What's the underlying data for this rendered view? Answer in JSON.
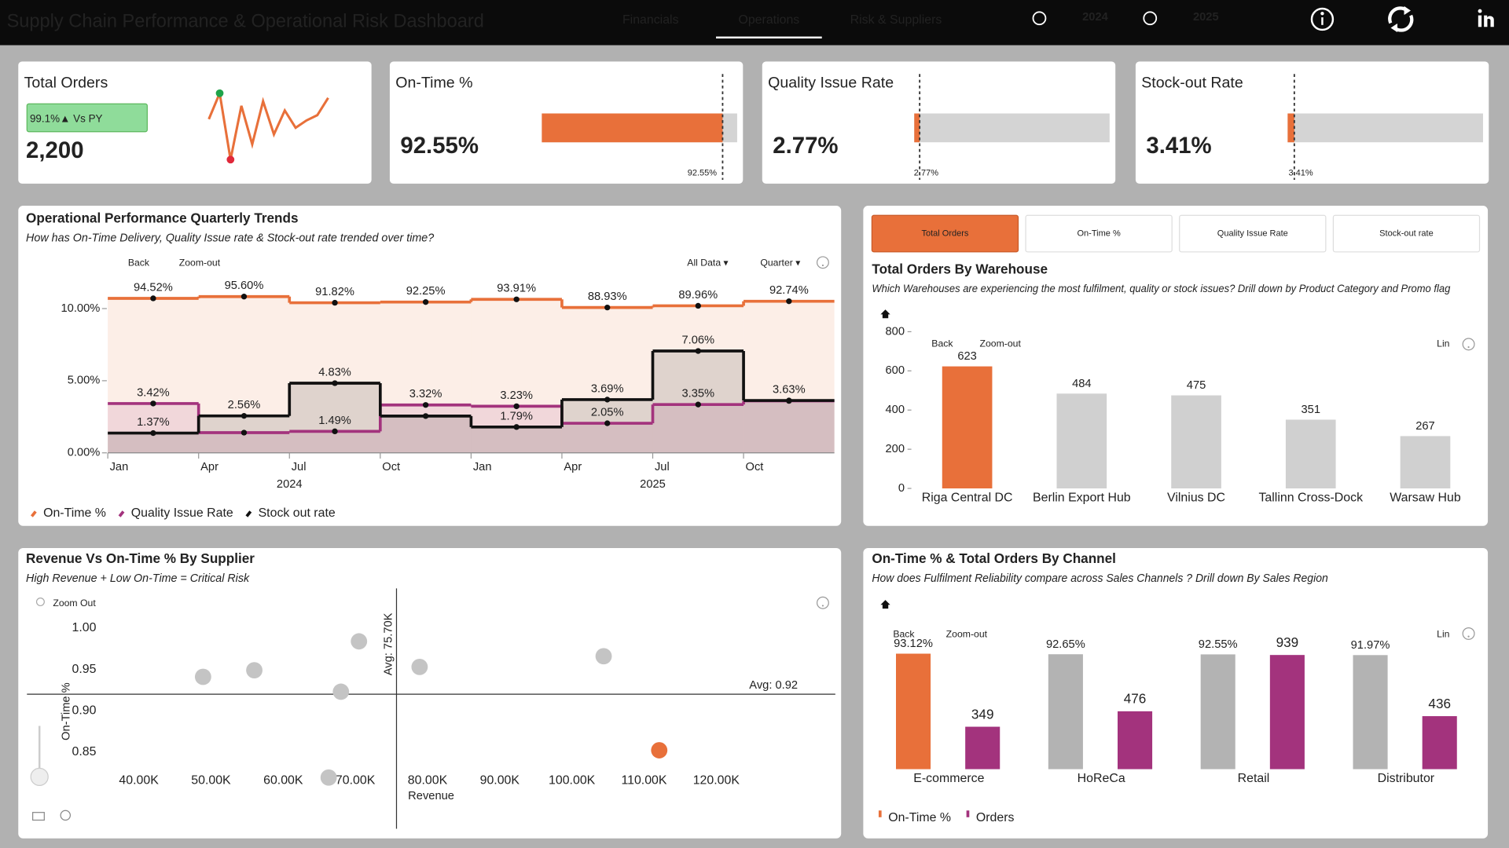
{
  "header": {
    "title": "Supply Chain Performance & Operational Risk Dashboard",
    "nav": [
      "Financials",
      "Operations",
      "Risk & Suppliers"
    ],
    "active_nav": 1,
    "years": [
      "2024",
      "2025"
    ]
  },
  "kpis": [
    {
      "title": "Total Orders",
      "value": "2,200",
      "badge": "99.1%▲ Vs PY",
      "sparkline": {
        "values": [
          61,
          100,
          0,
          81,
          23,
          88,
          38,
          74,
          48,
          59,
          67,
          93
        ],
        "ylim": [
          0,
          100
        ],
        "color": "#e8703a"
      }
    },
    {
      "title": "On-Time %",
      "value": 92.55,
      "value_label": "92.55%",
      "target": 92.55,
      "target_label": "92.55%",
      "xlim": [
        0,
        100
      ],
      "color": "#e8703a"
    },
    {
      "title": "Quality Issue Rate",
      "value": 2.77,
      "value_label": "2.77%",
      "target": 2.77,
      "target_label": "2.77%",
      "xlim": [
        0,
        100
      ],
      "color": "#e8703a"
    },
    {
      "title": "Stock-out Rate",
      "value": 3.41,
      "value_label": "3.41%",
      "target": 3.41,
      "target_label": "3.41%",
      "xlim": [
        0,
        100
      ],
      "color": "#e8703a"
    }
  ],
  "chart_data": [
    {
      "type": "line",
      "title": "Operational Performance Quarterly Trends",
      "subtitle": "How has On-Time Delivery, Quality Issue rate & Stock-out rate trended over time?",
      "toolbar": [
        "Back",
        "Zoom-out",
        "All Data ▾",
        "Quarter ▾"
      ],
      "x": [
        "2024-01",
        "2024-04",
        "2024-07",
        "2024-10",
        "2025-01",
        "2025-04",
        "2025-07",
        "2025-10"
      ],
      "xlim": [
        "2024-01",
        "2026-01"
      ],
      "xticks": [
        {
          "value": "2024-01",
          "label": "Jan"
        },
        {
          "value": "2024-04",
          "label": "Apr"
        },
        {
          "value": "2024-07",
          "label": "Jul"
        },
        {
          "value": "2024-10",
          "label": "Oct"
        },
        {
          "value": "2025-01",
          "label": "Jan"
        },
        {
          "value": "2025-04",
          "label": "Apr"
        },
        {
          "value": "2025-07",
          "label": "Jul"
        },
        {
          "value": "2025-10",
          "label": "Oct"
        }
      ],
      "year_labels": [
        "2024",
        "2025"
      ],
      "ylim": [
        0,
        11.33
      ],
      "yticks": [
        {
          "value": 0,
          "label": "0.00%"
        },
        {
          "value": 5,
          "label": "5.00%"
        },
        {
          "value": 10,
          "label": "10.00%"
        }
      ],
      "y2lim": [
        0,
        100
      ],
      "grid": false,
      "series": [
        {
          "name": "On-Time %",
          "color": "#e8703a",
          "axis": "y2",
          "values": [
            94.52,
            95.6,
            91.82,
            92.25,
            93.91,
            88.93,
            89.96,
            92.74
          ],
          "value_labels": [
            "94.52%",
            "95.60%",
            "91.82%",
            "92.25%",
            "93.91%",
            "88.93%",
            "89.96%",
            "92.74%"
          ]
        },
        {
          "name": "Quality Issue Rate",
          "color": "#a3337d",
          "values": [
            3.42,
            1.4,
            1.49,
            3.32,
            3.23,
            2.05,
            3.35,
            3.6
          ],
          "value_labels": [
            "3.42%",
            null,
            "1.49%",
            "3.32%",
            "3.23%",
            "2.05%",
            "3.35%",
            null
          ]
        },
        {
          "name": "Stock out rate",
          "color": "#111111",
          "values": [
            1.37,
            2.56,
            4.83,
            2.55,
            1.79,
            3.69,
            7.06,
            3.63
          ],
          "value_labels": [
            "1.37%",
            "2.56%",
            "4.83%",
            null,
            "1.79%",
            "3.69%",
            "7.06%",
            "3.63%"
          ]
        }
      ]
    },
    {
      "type": "bar",
      "title": "Total Orders By Warehouse",
      "subtitle": "Which Warehouses are experiencing the most fulfilment, quality or stock issues? Drill down by Product Category and Promo flag",
      "tabs": [
        "Total Orders",
        "On-Time %",
        "Quality Issue Rate",
        "Stock-out rate"
      ],
      "active_tab": 0,
      "toolbar": [
        "Back",
        "Zoom-out",
        "Lin"
      ],
      "categories": [
        "Riga Central DC",
        "Berlin Export Hub",
        "Vilnius DC",
        "Tallinn Cross-Dock",
        "Warsaw Hub"
      ],
      "values": [
        623,
        484,
        475,
        351,
        267
      ],
      "colors": [
        "#e8703a",
        "#d0d0d0",
        "#d0d0d0",
        "#d0d0d0",
        "#d0d0d0"
      ],
      "ylim": [
        0,
        800
      ],
      "yticks": [
        0,
        200,
        400,
        600,
        800
      ],
      "grid": false
    },
    {
      "type": "scatter",
      "title": "Revenue Vs On-Time % By Supplier",
      "subtitle": "High Revenue + Low On-Time = Critical Risk",
      "toolbar": [
        "Zoom Out"
      ],
      "x_label": "Revenue",
      "y_label": "On-Time %",
      "x": [
        48900,
        56000,
        68000,
        70500,
        78900,
        104400,
        112100,
        66300
      ],
      "values": [
        0.941,
        0.949,
        0.923,
        0.984,
        0.953,
        0.966,
        0.852,
        0.819
      ],
      "colors": [
        "#c4c4c4",
        "#c4c4c4",
        "#c4c4c4",
        "#c4c4c4",
        "#c4c4c4",
        "#c4c4c4",
        "#e8703a",
        "#c4c4c4"
      ],
      "xlim": [
        24500,
        136500
      ],
      "xticks": [
        {
          "value": 40000,
          "label": "40.00K"
        },
        {
          "value": 50000,
          "label": "50.00K"
        },
        {
          "value": 60000,
          "label": "60.00K"
        },
        {
          "value": 70000,
          "label": "70.00K"
        },
        {
          "value": 80000,
          "label": "80.00K"
        },
        {
          "value": 90000,
          "label": "90.00K"
        },
        {
          "value": 100000,
          "label": "100.00K"
        },
        {
          "value": 110000,
          "label": "110.00K"
        },
        {
          "value": 120000,
          "label": "120.00K"
        }
      ],
      "ylim": [
        0.8,
        1.04
      ],
      "yticks": [
        0.85,
        {
          "value": 0.9,
          "label": "0.90"
        },
        0.95,
        {
          "value": 1,
          "label": "1.00"
        }
      ],
      "reference_lines": [
        {
          "axis": "x",
          "value": 75700,
          "label": "Avg: 75.70K"
        },
        {
          "axis": "y",
          "value": 0.92,
          "label": "Avg: 0.92"
        }
      ]
    },
    {
      "type": "combo",
      "title": "On-Time % & Total Orders By Channel",
      "subtitle": "How does Fulfilment Reliability compare across Sales Channels ? Drill down By Sales Region",
      "toolbar": [
        "Back",
        "Zoom-out",
        "Lin"
      ],
      "categories": [
        "E-commerce",
        "HoReCa",
        "Retail",
        "Distributor"
      ],
      "ylim": [
        0,
        100
      ],
      "y2lim": [
        0,
        1020
      ],
      "series": [
        {
          "name": "On-Time %",
          "color": "#e8703a",
          "colors": [
            "#e8703a",
            "#b3b3b3",
            "#b3b3b3",
            "#b3b3b3"
          ],
          "values": [
            93.12,
            92.65,
            92.55,
            91.97
          ],
          "value_labels": [
            "93.12%",
            "92.65%",
            "92.55%",
            "91.97%"
          ]
        },
        {
          "name": "Orders",
          "color": "#a3337d",
          "axis": "y2",
          "values": [
            349,
            476,
            939,
            436
          ]
        }
      ]
    }
  ]
}
